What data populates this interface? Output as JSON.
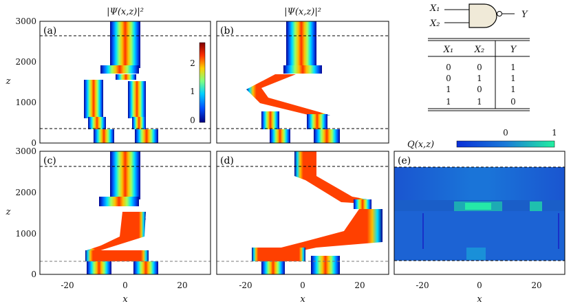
{
  "panel_titles": {
    "left": "|Ψ(x,z)|²",
    "right": "|Ψ(x,z)|²"
  },
  "panels": [
    {
      "id": "a",
      "label": "(a)",
      "kind": "intensity"
    },
    {
      "id": "b",
      "label": "(b)",
      "kind": "intensity"
    },
    {
      "id": "c",
      "label": "(c)",
      "kind": "intensity"
    },
    {
      "id": "d",
      "label": "(d)",
      "kind": "intensity"
    },
    {
      "id": "e",
      "label": "(e)",
      "kind": "Q"
    }
  ],
  "axes": {
    "xlabel": "x",
    "ylabel": "z",
    "xticks": [
      "-20",
      "0",
      "20"
    ],
    "yticks": [
      "0",
      "1000",
      "2000",
      "3000"
    ],
    "xlim": [
      -30,
      30
    ],
    "ylim": [
      0,
      3000
    ],
    "dashed_z": [
      350,
      2650
    ]
  },
  "colorbar_intensity": {
    "ticks": [
      "0",
      "1",
      "2"
    ],
    "range": [
      0,
      2.5
    ],
    "colors": [
      "#00007f",
      "#0050ff",
      "#00d0ff",
      "#80ff80",
      "#ffd000",
      "#ff3000",
      "#800000"
    ]
  },
  "colorbar_q": {
    "label": "Q(x,z)",
    "ticks": [
      "0",
      "1"
    ],
    "colors": [
      "#0a2fd8",
      "#1a7ad8",
      "#22f0a0"
    ]
  },
  "gate": {
    "input1": "X₁",
    "input2": "X₂",
    "output": "Y",
    "table": {
      "headers": [
        "X₁",
        "X₂",
        "Y"
      ],
      "rows": [
        [
          "0",
          "0",
          "1"
        ],
        [
          "0",
          "1",
          "1"
        ],
        [
          "1",
          "0",
          "1"
        ],
        [
          "1",
          "1",
          "0"
        ]
      ]
    }
  }
}
